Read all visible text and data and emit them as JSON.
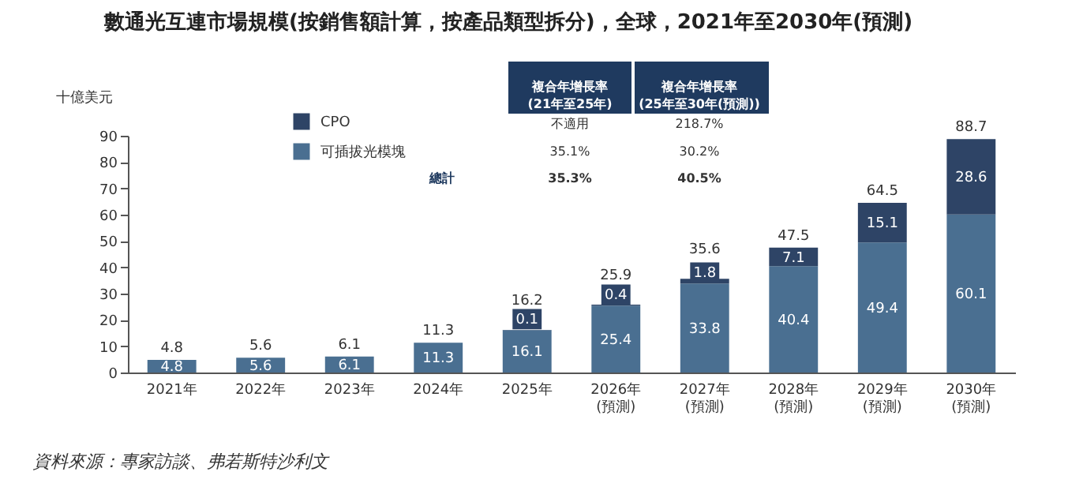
{
  "chart_data": {
    "type": "bar",
    "title": "數通光互連市場規模(按銷售額計算，按產品類型拆分)，全球，2021年至2030年(預測)",
    "ylabel": "十億美元",
    "categories": [
      "2021年",
      "2022年",
      "2023年",
      "2024年",
      "2025年",
      "2026年\n(預測)",
      "2027年\n(預測)",
      "2028年\n(預測)",
      "2029年\n(預測)",
      "2030年\n(預測)"
    ],
    "stacked": true,
    "series": [
      {
        "name": "可插拔光模塊",
        "color": "#4a6f91",
        "values": [
          4.8,
          5.6,
          6.1,
          11.3,
          16.1,
          25.4,
          33.8,
          40.4,
          49.4,
          60.1
        ]
      },
      {
        "name": "CPO",
        "color": "#2e4466",
        "values": [
          null,
          null,
          null,
          null,
          0.1,
          0.4,
          1.8,
          7.1,
          15.1,
          28.6
        ]
      }
    ],
    "data_labels": true,
    "totals": [
      "4.8",
      "5.6",
      "6.1",
      "11.3",
      "16.2",
      "25.9",
      "35.6",
      "47.5",
      "64.5",
      "88.7"
    ],
    "ylim": [
      0,
      90
    ],
    "yticks": [
      0,
      10,
      20,
      30,
      40,
      50,
      60,
      70,
      80,
      90
    ],
    "grid": false,
    "legend": "top left",
    "annotations": [
      "複合年增長率\n(21年至25年)",
      "複合年增長率\n(25年至30年(預測))",
      "不適用",
      "218.7%",
      "35.1%",
      "30.2%",
      "總計",
      "35.3%",
      "40.5%",
      "資料來源：專家訪談、弗若斯特沙利文"
    ]
  }
}
